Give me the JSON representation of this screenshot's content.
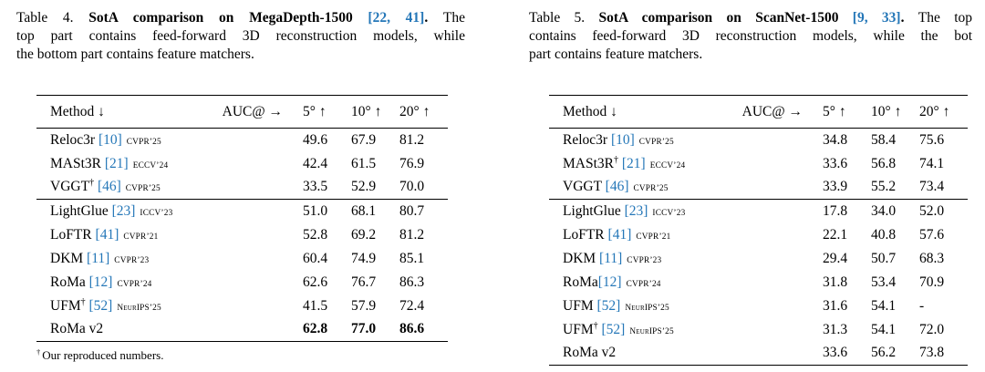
{
  "colors": {
    "citation_blue": "#2577b8",
    "text": "#000000",
    "background": "#ffffff"
  },
  "header": {
    "method": "Method ↓",
    "auc": "AUC@ →",
    "cols": [
      "5° ↑",
      "10° ↑",
      "20° ↑"
    ]
  },
  "table4": {
    "caption_lines": [
      {
        "just": true,
        "segs": [
          {
            "t": "Table 4. "
          },
          {
            "t": "SotA comparison on MegaDepth-1500 ",
            "b": 1
          },
          {
            "t": "[22, 41]",
            "b": 1,
            "c": 1
          },
          {
            "t": ". ",
            "b": 1
          },
          {
            "t": "The"
          }
        ]
      },
      {
        "just": true,
        "segs": [
          {
            "t": "top part contains feed-forward 3D reconstruction models, while"
          }
        ]
      },
      {
        "just": false,
        "segs": [
          {
            "t": "the bottom part contains feature matchers."
          }
        ]
      }
    ],
    "rows_top": [
      {
        "name": "Reloc3r",
        "cite": "[10]",
        "venue": "CVPR’25",
        "v": [
          "49.6",
          "67.9",
          "81.2"
        ]
      },
      {
        "name": "MASt3R",
        "cite": "[21]",
        "venue": "ECCV’24",
        "v": [
          "42.4",
          "61.5",
          "76.9"
        ]
      },
      {
        "name": "VGGT",
        "sup": "†",
        "cite": "[46]",
        "venue": "CVPR’25",
        "v": [
          "33.5",
          "52.9",
          "70.0"
        ]
      }
    ],
    "rows_bottom": [
      {
        "name": "LightGlue",
        "cite": "[23]",
        "venue": "ICCV’23",
        "v": [
          "51.0",
          "68.1",
          "80.7"
        ]
      },
      {
        "name": "LoFTR",
        "cite": "[41]",
        "venue": "CVPR’21",
        "v": [
          "52.8",
          "69.2",
          "81.2"
        ]
      },
      {
        "name": "DKM",
        "cite": "[11]",
        "venue": "CVPR’23",
        "v": [
          "60.4",
          "74.9",
          "85.1"
        ]
      },
      {
        "name": "RoMa",
        "cite": "[12]",
        "venue": "CVPR’24",
        "v": [
          "62.6",
          "76.7",
          "86.3"
        ]
      },
      {
        "name": "UFM",
        "sup": "†",
        "cite": "[52]",
        "venue": "NeurIPS’25",
        "v": [
          "41.5",
          "57.9",
          "72.4"
        ]
      },
      {
        "name": "RoMa v2",
        "bold_values": true,
        "v": [
          "62.8",
          "77.0",
          "86.6"
        ]
      }
    ],
    "footnote": {
      "sup": "†",
      "text": "Our reproduced numbers."
    }
  },
  "table5": {
    "caption_lines": [
      {
        "just": true,
        "segs": [
          {
            "t": "Table 5. "
          },
          {
            "t": "SotA comparison on ScanNet-1500 ",
            "b": 1
          },
          {
            "t": "[9, 33]",
            "b": 1,
            "c": 1
          },
          {
            "t": ". ",
            "b": 1
          },
          {
            "t": "The top"
          }
        ]
      },
      {
        "just": true,
        "segs": [
          {
            "t": "contains feed-forward 3D reconstruction models, while the bot"
          }
        ]
      },
      {
        "just": false,
        "segs": [
          {
            "t": "part contains feature matchers."
          }
        ]
      }
    ],
    "rows_top": [
      {
        "name": "Reloc3r",
        "cite": "[10]",
        "venue": "CVPR’25",
        "v": [
          "34.8",
          "58.4",
          "75.6"
        ]
      },
      {
        "name": "MASt3R",
        "sup": "†",
        "cite": "[21]",
        "venue": "ECCV’24",
        "v": [
          "33.6",
          "56.8",
          "74.1"
        ]
      },
      {
        "name": "VGGT",
        "cite": "[46]",
        "venue": "CVPR’25",
        "v": [
          "33.9",
          "55.2",
          "73.4"
        ]
      }
    ],
    "rows_bottom": [
      {
        "name": "LightGlue",
        "cite": "[23]",
        "venue": "ICCV’23",
        "v": [
          "17.8",
          "34.0",
          "52.0"
        ]
      },
      {
        "name": "LoFTR",
        "cite": "[41]",
        "venue": "CVPR’21",
        "v": [
          "22.1",
          "40.8",
          "57.6"
        ]
      },
      {
        "name": "DKM",
        "cite": "[11]",
        "venue": "CVPR’23",
        "v": [
          "29.4",
          "50.7",
          "68.3"
        ]
      },
      {
        "name": "RoMa",
        "nospace": true,
        "cite": "[12]",
        "venue": "CVPR’24",
        "v": [
          "31.8",
          "53.4",
          "70.9"
        ]
      },
      {
        "name": "UFM",
        "cite": "[52]",
        "venue": "NeurIPS’25",
        "v": [
          "31.6",
          "54.1",
          "-"
        ]
      },
      {
        "name": "UFM",
        "sup": "†",
        "cite": "[52]",
        "venue": "NeurIPS’25",
        "v": [
          "31.3",
          "54.1",
          "72.0"
        ]
      },
      {
        "name": "RoMa v2",
        "v": [
          "33.6",
          "56.2",
          "73.8"
        ]
      }
    ]
  }
}
